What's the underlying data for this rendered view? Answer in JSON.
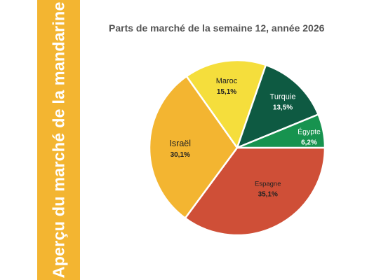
{
  "banner": {
    "title": "Aperçu du marché de la mandarine",
    "color": "#f3b531"
  },
  "chart_data": {
    "type": "pie",
    "title": "Parts de marché de la semaine 12, année 2026",
    "unit": "%",
    "slices": [
      {
        "label": "Espagne",
        "value": 35.1,
        "display": "35,1%",
        "color": "#cf4f37"
      },
      {
        "label": "Israël",
        "value": 30.1,
        "display": "30,1%",
        "color": "#f3b531"
      },
      {
        "label": "Maroc",
        "value": 15.1,
        "display": "15,1%",
        "color": "#f5de3c"
      },
      {
        "label": "Turquie",
        "value": 13.5,
        "display": "13,5%",
        "color": "#0e5a42"
      },
      {
        "label": "Égypte",
        "value": 6.2,
        "display": "6,2%",
        "color": "#17934f"
      }
    ],
    "start_angle_deg": 0,
    "direction": "clockwise",
    "legend": "none",
    "data_labels": "inside slices"
  }
}
